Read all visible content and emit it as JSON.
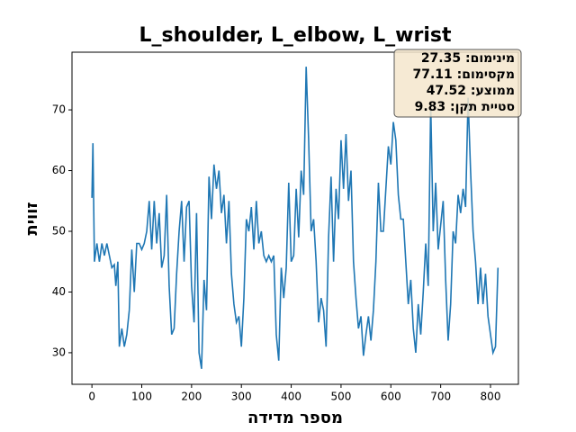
{
  "chart_data": {
    "type": "line",
    "title": "L_shoulder, L_elbow, L_wrist",
    "x_label": "מספר מדידה",
    "y_label": "זווית",
    "annotation": [
      "מינימום: 27.35",
      "מקסימום: 77.11",
      "ממוצע: 47.52",
      "סטיית תקן: 9.83"
    ],
    "x": [
      0,
      2,
      5,
      10,
      15,
      20,
      25,
      30,
      35,
      40,
      45,
      48,
      52,
      55,
      60,
      65,
      70,
      75,
      80,
      85,
      90,
      95,
      100,
      105,
      110,
      115,
      120,
      125,
      130,
      135,
      140,
      145,
      150,
      155,
      160,
      165,
      170,
      175,
      180,
      185,
      190,
      195,
      200,
      205,
      210,
      215,
      220,
      225,
      230,
      235,
      240,
      245,
      250,
      255,
      260,
      265,
      270,
      275,
      280,
      285,
      290,
      295,
      300,
      305,
      310,
      315,
      320,
      325,
      330,
      335,
      340,
      345,
      350,
      355,
      360,
      365,
      370,
      375,
      380,
      385,
      390,
      395,
      400,
      405,
      410,
      415,
      420,
      425,
      430,
      435,
      440,
      445,
      450,
      455,
      460,
      465,
      470,
      475,
      480,
      485,
      490,
      495,
      500,
      505,
      510,
      515,
      520,
      525,
      530,
      535,
      540,
      545,
      550,
      555,
      560,
      565,
      570,
      575,
      580,
      585,
      590,
      595,
      600,
      605,
      610,
      615,
      620,
      625,
      630,
      635,
      640,
      645,
      650,
      655,
      660,
      665,
      670,
      675,
      680,
      685,
      690,
      695,
      700,
      705,
      710,
      715,
      720,
      725,
      730,
      735,
      740,
      745,
      750,
      755,
      760,
      765,
      770,
      775,
      780,
      785,
      790,
      795,
      800,
      805,
      810,
      815
    ],
    "values": [
      55.5,
      64.5,
      45,
      48,
      45,
      48,
      46,
      48,
      46,
      44,
      44.5,
      41,
      45,
      31,
      34,
      31,
      33,
      37,
      47,
      40,
      48,
      48,
      47,
      48,
      50,
      55,
      47,
      55,
      48,
      53,
      44,
      46,
      56,
      41,
      33,
      34,
      43,
      50,
      55,
      45,
      54,
      55,
      41,
      35,
      53,
      30,
      27.35,
      42,
      37,
      59,
      52,
      61,
      57,
      60,
      53,
      56,
      48,
      55,
      43,
      38,
      35,
      36,
      31,
      39,
      52,
      50,
      54,
      47,
      55,
      48,
      50,
      46,
      45,
      46,
      45,
      46,
      33,
      28.7,
      44,
      39,
      44,
      58,
      45,
      46,
      57,
      49,
      60,
      56,
      77.11,
      65,
      50,
      52,
      45,
      35,
      39,
      37,
      31,
      49,
      59,
      45,
      57,
      52,
      65,
      57,
      66,
      55,
      60,
      45,
      39,
      34,
      36,
      29.5,
      33,
      36,
      32,
      37,
      45,
      58,
      50,
      50,
      57,
      64,
      61,
      68,
      65,
      56,
      52,
      52,
      45,
      38,
      42,
      34,
      30,
      38,
      33,
      40,
      48,
      41,
      71,
      50,
      58,
      47,
      51,
      55,
      42,
      32,
      38,
      50,
      48,
      56,
      53,
      57,
      54,
      72,
      60,
      50,
      45,
      38,
      44,
      38,
      43,
      36,
      33,
      30,
      31,
      44
    ],
    "color": "#1f77b4",
    "xlim": [
      -40,
      856
    ],
    "xticks": [
      0,
      100,
      200,
      300,
      400,
      500,
      600,
      700,
      800
    ],
    "ylim": [
      24.8,
      79.5
    ],
    "yticks": [
      30,
      40,
      50,
      60,
      70
    ]
  }
}
